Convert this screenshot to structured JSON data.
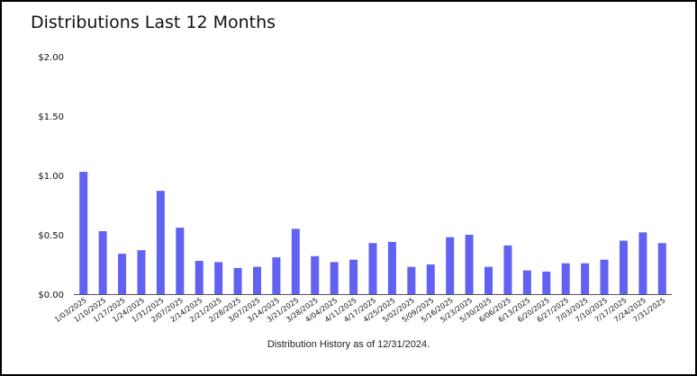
{
  "title": "Distributions Last 12 Months",
  "footnote": "Distribution History as of 12/31/2024.",
  "colors": {
    "bar": "#6161f2",
    "axis": "#555555",
    "text": "#111111"
  },
  "chart_data": {
    "type": "bar",
    "title": "Distributions Last 12 Months",
    "xlabel": "",
    "ylabel": "",
    "ylim": [
      0,
      2
    ],
    "yticks": [
      0,
      0.5,
      1.0,
      1.5,
      2.0
    ],
    "ytick_labels": [
      "$0.00",
      "$0.50",
      "$1.00",
      "$1.50",
      "$2.00"
    ],
    "grid": false,
    "categories": [
      "1/03/2025",
      "1/10/2025",
      "1/17/2025",
      "1/24/2025",
      "1/31/2025",
      "2/07/2025",
      "2/14/2025",
      "2/21/2025",
      "2/28/2025",
      "3/07/2025",
      "3/14/2025",
      "3/21/2025",
      "3/28/2025",
      "4/04/2025",
      "4/11/2025",
      "4/17/2025",
      "4/25/2025",
      "5/02/2025",
      "5/09/2025",
      "5/16/2025",
      "5/23/2025",
      "5/30/2025",
      "6/06/2025",
      "6/13/2025",
      "6/20/2025",
      "6/27/2025",
      "7/03/2025",
      "7/10/2025",
      "7/17/2025",
      "7/24/2025",
      "7/31/2025"
    ],
    "values": [
      1.03,
      0.53,
      0.34,
      0.37,
      0.87,
      0.56,
      0.28,
      0.27,
      0.22,
      0.23,
      0.31,
      0.55,
      0.32,
      0.27,
      0.29,
      0.43,
      0.44,
      0.23,
      0.25,
      0.48,
      0.5,
      0.23,
      0.41,
      0.2,
      0.19,
      0.26,
      0.26,
      0.29,
      0.45,
      0.52,
      0.43
    ]
  }
}
